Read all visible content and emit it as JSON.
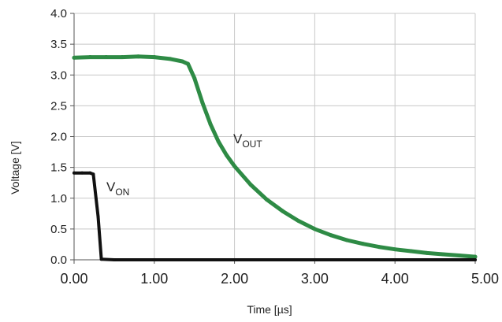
{
  "chart_data": {
    "type": "line",
    "title": "",
    "xlabel": "Time [µs]",
    "ylabel": "Voltage [V]",
    "xlim": [
      0,
      5
    ],
    "ylim": [
      0,
      4
    ],
    "x_ticks": [
      "0.00",
      "1.00",
      "2.00",
      "3.00",
      "4.00",
      "5.00"
    ],
    "y_ticks": [
      "0.0",
      "0.5",
      "1.0",
      "1.5",
      "2.0",
      "2.5",
      "3.0",
      "3.5",
      "4.0"
    ],
    "grid": true,
    "legend": "none",
    "series": [
      {
        "name": "VOUT",
        "label_main": "V",
        "label_sub": "OUT",
        "color": "#2e8b45",
        "points": [
          [
            0.0,
            3.28
          ],
          [
            0.2,
            3.29
          ],
          [
            0.4,
            3.29
          ],
          [
            0.6,
            3.29
          ],
          [
            0.8,
            3.3
          ],
          [
            1.0,
            3.29
          ],
          [
            1.2,
            3.26
          ],
          [
            1.35,
            3.22
          ],
          [
            1.42,
            3.18
          ],
          [
            1.5,
            2.95
          ],
          [
            1.6,
            2.55
          ],
          [
            1.7,
            2.2
          ],
          [
            1.8,
            1.92
          ],
          [
            1.9,
            1.7
          ],
          [
            2.0,
            1.52
          ],
          [
            2.2,
            1.22
          ],
          [
            2.4,
            0.98
          ],
          [
            2.6,
            0.79
          ],
          [
            2.8,
            0.63
          ],
          [
            3.0,
            0.5
          ],
          [
            3.2,
            0.4
          ],
          [
            3.4,
            0.32
          ],
          [
            3.6,
            0.26
          ],
          [
            3.8,
            0.21
          ],
          [
            4.0,
            0.17
          ],
          [
            4.2,
            0.14
          ],
          [
            4.4,
            0.11
          ],
          [
            4.6,
            0.09
          ],
          [
            4.8,
            0.07
          ],
          [
            5.0,
            0.05
          ]
        ]
      },
      {
        "name": "VON",
        "label_main": "V",
        "label_sub": "ON",
        "color": "#111111",
        "points": [
          [
            0.0,
            1.41
          ],
          [
            0.1,
            1.41
          ],
          [
            0.2,
            1.41
          ],
          [
            0.24,
            1.39
          ],
          [
            0.3,
            0.7
          ],
          [
            0.34,
            0.01
          ],
          [
            0.5,
            0.0
          ],
          [
            1.0,
            0.0
          ],
          [
            2.0,
            0.0
          ],
          [
            3.0,
            0.0
          ],
          [
            4.0,
            0.0
          ],
          [
            5.0,
            0.0
          ]
        ]
      }
    ]
  }
}
